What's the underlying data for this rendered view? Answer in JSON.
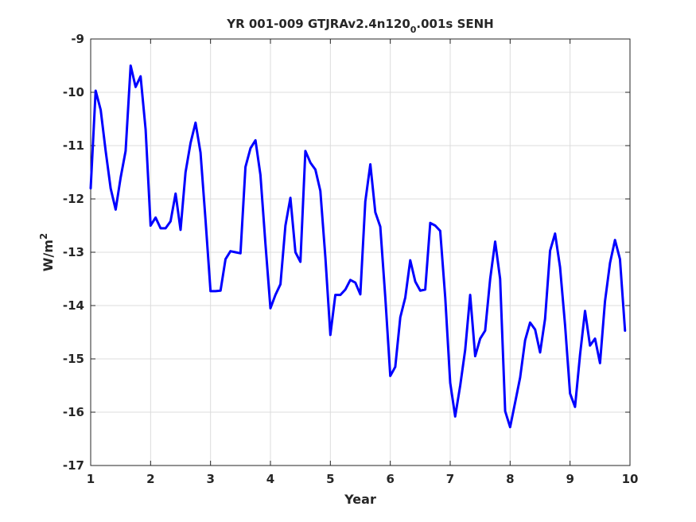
{
  "chart_data": {
    "type": "line",
    "title": "YR 001-009 GTJRAv2.4n120",
    "title_sub": "0",
    "title_tail": ".001s SENH",
    "xlabel": "Year",
    "ylabel": "W/m",
    "ylabel_sup": "2",
    "xlim": [
      1,
      10
    ],
    "ylim": [
      -17,
      -9
    ],
    "xticks": [
      "1",
      "2",
      "3",
      "4",
      "5",
      "6",
      "7",
      "8",
      "9",
      "10"
    ],
    "yticks": [
      "-9",
      "-10",
      "-11",
      "-12",
      "-13",
      "-14",
      "-15",
      "-16",
      "-17"
    ],
    "grid": true,
    "series": [
      {
        "color": "#0000ff",
        "x": [
          1.0,
          1.083,
          1.167,
          1.25,
          1.333,
          1.417,
          1.5,
          1.583,
          1.667,
          1.75,
          1.833,
          1.917,
          2.0,
          2.083,
          2.167,
          2.25,
          2.333,
          2.417,
          2.5,
          2.583,
          2.667,
          2.75,
          2.833,
          2.917,
          3.0,
          3.083,
          3.167,
          3.25,
          3.333,
          3.417,
          3.5,
          3.583,
          3.667,
          3.75,
          3.833,
          3.917,
          4.0,
          4.083,
          4.167,
          4.25,
          4.333,
          4.417,
          4.5,
          4.583,
          4.667,
          4.75,
          4.833,
          4.917,
          5.0,
          5.083,
          5.167,
          5.25,
          5.333,
          5.417,
          5.5,
          5.583,
          5.667,
          5.75,
          5.833,
          5.917,
          6.0,
          6.083,
          6.167,
          6.25,
          6.333,
          6.417,
          6.5,
          6.583,
          6.667,
          6.75,
          6.833,
          6.917,
          7.0,
          7.083,
          7.167,
          7.25,
          7.333,
          7.417,
          7.5,
          7.583,
          7.667,
          7.75,
          7.833,
          7.917,
          8.0,
          8.083,
          8.167,
          8.25,
          8.333,
          8.417,
          8.5,
          8.583,
          8.667,
          8.75,
          8.833,
          8.917,
          9.0,
          9.083,
          9.167,
          9.25,
          9.333,
          9.417,
          9.5,
          9.583,
          9.667,
          9.75,
          9.833,
          9.917
        ],
        "y": [
          -11.8,
          -9.97,
          -10.33,
          -11.1,
          -11.8,
          -12.2,
          -11.6,
          -11.1,
          -9.5,
          -9.9,
          -9.7,
          -10.7,
          -12.5,
          -12.35,
          -12.55,
          -12.55,
          -12.42,
          -11.9,
          -12.58,
          -11.5,
          -10.95,
          -10.57,
          -11.13,
          -12.4,
          -13.73,
          -13.73,
          -13.72,
          -13.13,
          -12.98,
          -13.0,
          -13.02,
          -11.4,
          -11.05,
          -10.9,
          -11.55,
          -12.85,
          -14.05,
          -13.8,
          -13.6,
          -12.5,
          -11.98,
          -13.0,
          -13.18,
          -11.1,
          -11.32,
          -11.45,
          -11.85,
          -13.1,
          -14.55,
          -13.8,
          -13.8,
          -13.7,
          -13.52,
          -13.57,
          -13.79,
          -12.05,
          -11.35,
          -12.25,
          -12.52,
          -13.85,
          -15.32,
          -15.15,
          -14.22,
          -13.85,
          -13.15,
          -13.55,
          -13.72,
          -13.7,
          -12.45,
          -12.5,
          -12.6,
          -13.85,
          -15.45,
          -16.08,
          -15.5,
          -14.83,
          -13.8,
          -14.95,
          -14.62,
          -14.47,
          -13.5,
          -12.8,
          -13.5,
          -15.98,
          -16.28,
          -15.82,
          -15.35,
          -14.65,
          -14.32,
          -14.45,
          -14.88,
          -14.25,
          -12.97,
          -12.65,
          -13.28,
          -14.37,
          -15.65,
          -15.9,
          -14.92,
          -14.1,
          -14.75,
          -14.62,
          -15.08,
          -13.92,
          -13.2,
          -12.77,
          -13.13,
          -14.47
        ]
      }
    ]
  }
}
